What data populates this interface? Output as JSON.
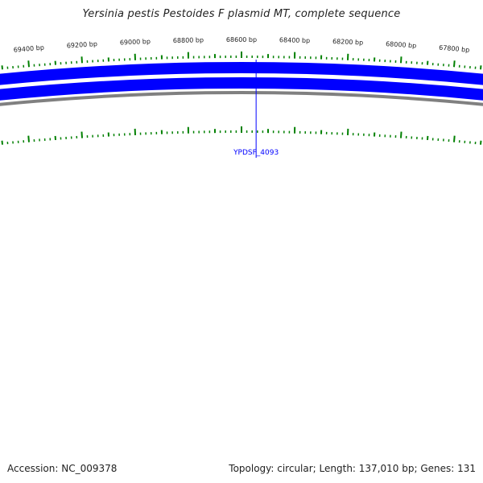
{
  "title": "Yersinia pestis Pestoides F plasmid MT, complete sequence",
  "footer": {
    "accession": "Accession: NC_009378",
    "summary": "Topology: circular; Length: 137,010 bp; Genes: 131"
  },
  "colors": {
    "feature": "#0000ff",
    "backbone": "#808080",
    "tick": "#008000",
    "label": "#222222"
  },
  "map": {
    "tick_labels": [
      {
        "bp": 69400,
        "text": "69400 bp"
      },
      {
        "bp": 69200,
        "text": "69200 bp"
      },
      {
        "bp": 69000,
        "text": "69000 bp"
      },
      {
        "bp": 68800,
        "text": "68800 bp"
      },
      {
        "bp": 68600,
        "text": "68600 bp"
      },
      {
        "bp": 68400,
        "text": "68400 bp"
      },
      {
        "bp": 68200,
        "text": "68200 bp"
      },
      {
        "bp": 68000,
        "text": "68000 bp"
      },
      {
        "bp": 67800,
        "text": "67800 bp"
      }
    ],
    "genes": [
      {
        "name": "YPDSF_4093",
        "bp": 68545
      }
    ]
  }
}
